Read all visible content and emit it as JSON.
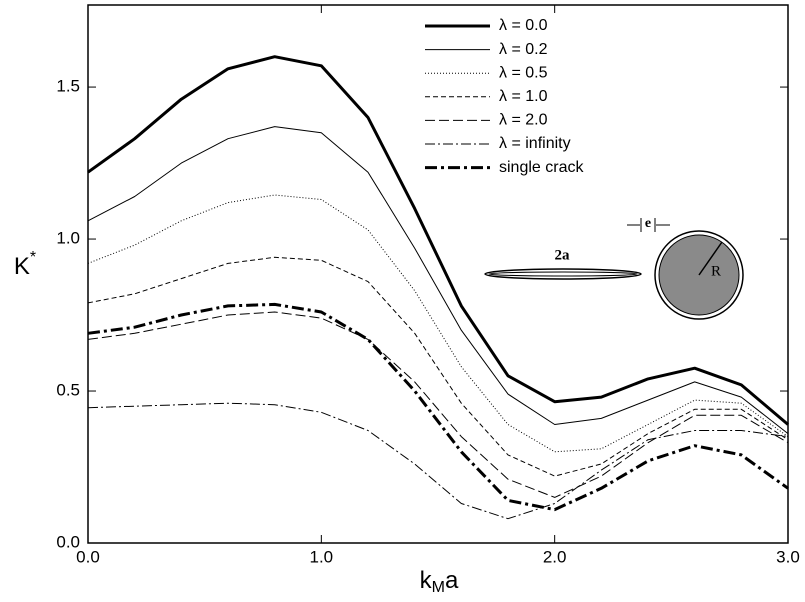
{
  "chart_data": {
    "type": "line",
    "x_label": [
      "k",
      "M",
      "a"
    ],
    "y_label": [
      "K",
      "*"
    ],
    "x": [
      0,
      0.2,
      0.4,
      0.6,
      0.8,
      1.0,
      1.2,
      1.4,
      1.6,
      1.8,
      2.0,
      2.2,
      2.4,
      2.6,
      2.8,
      3.0
    ],
    "xlim": [
      0,
      3
    ],
    "ylim": [
      0,
      1.77
    ],
    "xticks": [
      {
        "value": 0,
        "label": "0.0"
      },
      {
        "value": 1,
        "label": "1.0"
      },
      {
        "value": 2,
        "label": "2.0"
      },
      {
        "value": 3,
        "label": "3.0"
      }
    ],
    "yticks": [
      {
        "value": 0,
        "label": "0.0"
      },
      {
        "value": 0.5,
        "label": "0.5"
      },
      {
        "value": 1,
        "label": "1.0"
      },
      {
        "value": 1.5,
        "label": "1.5"
      }
    ],
    "legend": "top-center",
    "series": [
      {
        "name": "λ = 0.0",
        "color": "#000000",
        "width": 3,
        "dash": "none",
        "values": [
          1.22,
          1.33,
          1.46,
          1.56,
          1.6,
          1.57,
          1.4,
          1.1,
          0.78,
          0.55,
          0.465,
          0.48,
          0.54,
          0.575,
          0.52,
          0.39
        ]
      },
      {
        "name": "λ = 0.2",
        "color": "#000000",
        "width": 1,
        "dash": "none",
        "values": [
          1.06,
          1.14,
          1.25,
          1.33,
          1.37,
          1.35,
          1.22,
          0.97,
          0.7,
          0.49,
          0.39,
          0.41,
          0.47,
          0.53,
          0.48,
          0.36
        ]
      },
      {
        "name": "λ = 0.5",
        "color": "#000000",
        "width": 1,
        "dash": "1 2",
        "values": [
          0.92,
          0.98,
          1.06,
          1.12,
          1.145,
          1.13,
          1.03,
          0.83,
          0.58,
          0.39,
          0.3,
          0.31,
          0.39,
          0.47,
          0.46,
          0.35
        ]
      },
      {
        "name": "λ = 1.0",
        "color": "#000000",
        "width": 1,
        "dash": "5 3",
        "values": [
          0.79,
          0.82,
          0.87,
          0.92,
          0.94,
          0.93,
          0.86,
          0.69,
          0.46,
          0.29,
          0.22,
          0.26,
          0.36,
          0.44,
          0.44,
          0.34
        ]
      },
      {
        "name": "λ = 2.0",
        "color": "#000000",
        "width": 1,
        "dash": "10 4",
        "values": [
          0.67,
          0.69,
          0.72,
          0.75,
          0.76,
          0.74,
          0.67,
          0.53,
          0.35,
          0.21,
          0.15,
          0.22,
          0.33,
          0.42,
          0.42,
          0.33
        ]
      },
      {
        "name": "λ = infinity",
        "color": "#000000",
        "width": 1,
        "dash": "10 3 2 3",
        "values": [
          0.445,
          0.45,
          0.455,
          0.46,
          0.455,
          0.43,
          0.37,
          0.26,
          0.13,
          0.08,
          0.13,
          0.24,
          0.34,
          0.37,
          0.37,
          0.35
        ]
      },
      {
        "name": "single crack",
        "color": "#000000",
        "width": 3,
        "dash": "12 4 3 4",
        "values": [
          0.69,
          0.71,
          0.75,
          0.78,
          0.785,
          0.76,
          0.67,
          0.5,
          0.3,
          0.14,
          0.11,
          0.18,
          0.27,
          0.32,
          0.29,
          0.18
        ]
      }
    ],
    "annotations": [
      "2a",
      "e",
      "R"
    ]
  }
}
